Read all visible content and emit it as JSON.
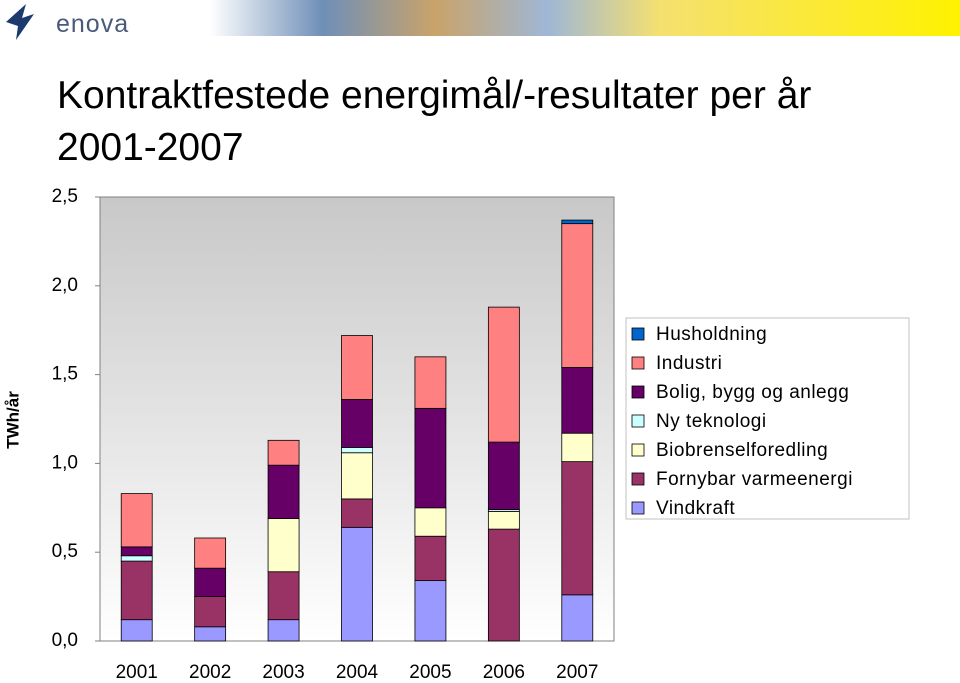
{
  "header": {
    "logo": "enova"
  },
  "chart_data": {
    "type": "stacked-bar",
    "title": "Kontraktfestede energimål/-resultater per år 2001-2007",
    "y_label": "TWh/år",
    "categories": [
      "2001",
      "2002",
      "2003",
      "2004",
      "2005",
      "2006",
      "2007"
    ],
    "series": [
      {
        "name": "Vindkraft",
        "color": "#9999ff",
        "values": [
          0.12,
          0.08,
          0.12,
          0.64,
          0.34,
          0,
          0.26
        ]
      },
      {
        "name": "Fornybar varmeenergi",
        "color": "#993366",
        "values": [
          0.33,
          0.17,
          0.27,
          0.16,
          0.25,
          0.63,
          0.75
        ]
      },
      {
        "name": "Biobrenselforedling",
        "color": "#ffffcc",
        "values": [
          0,
          0,
          0.3,
          0.26,
          0.16,
          0.1,
          0.16
        ]
      },
      {
        "name": "Ny teknologi",
        "color": "#ccffff",
        "values": [
          0.03,
          0,
          0,
          0.03,
          0,
          0.01,
          0
        ]
      },
      {
        "name": "Bolig, bygg og anlegg",
        "color": "#660066",
        "values": [
          0.05,
          0.16,
          0.3,
          0.27,
          0.56,
          0.38,
          0.37
        ]
      },
      {
        "name": "Industri",
        "color": "#ff8080",
        "values": [
          0.3,
          0.17,
          0.14,
          0.36,
          0.29,
          0.76,
          0.81
        ]
      },
      {
        "name": "Husholdning",
        "color": "#0066cc",
        "values": [
          0,
          0,
          0,
          0,
          0,
          0,
          0.02
        ]
      }
    ],
    "ylim": [
      0,
      2.5
    ],
    "yticks": [
      {
        "value": 0,
        "label": "0,0"
      },
      {
        "value": 0.5,
        "label": "0,5"
      },
      {
        "value": 1,
        "label": "1,0"
      },
      {
        "value": 1.5,
        "label": "1,5"
      },
      {
        "value": 2,
        "label": "2,0"
      },
      {
        "value": 2.5,
        "label": "2,5"
      }
    ]
  }
}
